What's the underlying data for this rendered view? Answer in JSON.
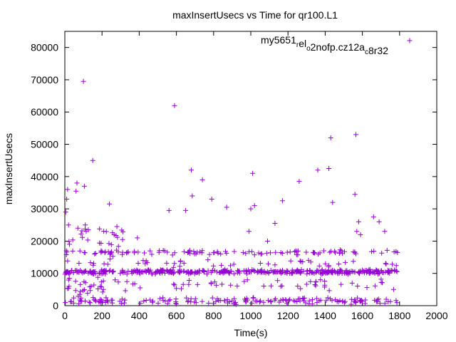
{
  "chart_data": {
    "type": "scatter",
    "title": "maxInsertUsecs vs Time for qr100.L1",
    "xlabel": "Time(s)",
    "ylabel": "maxInsertUsecs",
    "xlim": [
      0,
      2000
    ],
    "ylim": [
      0,
      85000
    ],
    "xticks": [
      0,
      200,
      400,
      600,
      800,
      1000,
      1200,
      1400,
      1600,
      1800,
      2000
    ],
    "yticks": [
      0,
      10000,
      20000,
      30000,
      40000,
      50000,
      60000,
      70000,
      80000
    ],
    "grid": false,
    "legend_position": "top-right",
    "marker": "plus",
    "series": [
      {
        "name": "my5651_rel_o2nofp.cz12a_c8r32",
        "legend_parts": [
          {
            "text": "my5651",
            "shift": "none"
          },
          {
            "text": "r",
            "shift": "sub"
          },
          {
            "text": "el",
            "shift": "none"
          },
          {
            "text": "o",
            "shift": "sub"
          },
          {
            "text": "2nofp.cz12a",
            "shift": "none"
          },
          {
            "text": "c",
            "shift": "sub"
          },
          {
            "text": "8r32",
            "shift": "none"
          }
        ],
        "color": "#9400d3",
        "outliers": [
          {
            "x": 5,
            "y": 29000
          },
          {
            "x": 10,
            "y": 33000
          },
          {
            "x": 15,
            "y": 36000
          },
          {
            "x": 20,
            "y": 25000
          },
          {
            "x": 8,
            "y": 17000
          },
          {
            "x": 25,
            "y": 19000
          },
          {
            "x": 60,
            "y": 35500
          },
          {
            "x": 65,
            "y": 38000
          },
          {
            "x": 70,
            "y": 24000
          },
          {
            "x": 100,
            "y": 69500
          },
          {
            "x": 105,
            "y": 37000
          },
          {
            "x": 110,
            "y": 25000
          },
          {
            "x": 115,
            "y": 23000
          },
          {
            "x": 150,
            "y": 45000
          },
          {
            "x": 160,
            "y": 16000
          },
          {
            "x": 240,
            "y": 31500
          },
          {
            "x": 265,
            "y": 22000
          },
          {
            "x": 280,
            "y": 24500
          },
          {
            "x": 390,
            "y": 21000
          },
          {
            "x": 560,
            "y": 29500
          },
          {
            "x": 590,
            "y": 62000
          },
          {
            "x": 650,
            "y": 29500
          },
          {
            "x": 680,
            "y": 42000
          },
          {
            "x": 685,
            "y": 34000
          },
          {
            "x": 740,
            "y": 39000
          },
          {
            "x": 790,
            "y": 33000
          },
          {
            "x": 870,
            "y": 30500
          },
          {
            "x": 990,
            "y": 23000
          },
          {
            "x": 1000,
            "y": 30000
          },
          {
            "x": 1010,
            "y": 41000
          },
          {
            "x": 1020,
            "y": 31000
          },
          {
            "x": 1090,
            "y": 20000
          },
          {
            "x": 1130,
            "y": 25500
          },
          {
            "x": 1170,
            "y": 32500
          },
          {
            "x": 1260,
            "y": 38500
          },
          {
            "x": 1360,
            "y": 42000
          },
          {
            "x": 1420,
            "y": 42500
          },
          {
            "x": 1430,
            "y": 52000
          },
          {
            "x": 1440,
            "y": 32000
          },
          {
            "x": 1560,
            "y": 34500
          },
          {
            "x": 1565,
            "y": 53000
          },
          {
            "x": 1570,
            "y": 23000
          },
          {
            "x": 1580,
            "y": 26000
          },
          {
            "x": 1590,
            "y": 22000
          },
          {
            "x": 1660,
            "y": 27500
          },
          {
            "x": 1690,
            "y": 26000
          },
          {
            "x": 1720,
            "y": 23000
          }
        ],
        "bands": [
          {
            "x_range": [
              0,
              1790
            ],
            "center": 10500,
            "spread": 800,
            "points": 420
          },
          {
            "x_range": [
              0,
              1790
            ],
            "center": 16500,
            "spread": 900,
            "points": 110
          },
          {
            "x_range": [
              0,
              1790
            ],
            "center": 1500,
            "spread": 1200,
            "points": 170
          },
          {
            "x_range": [
              0,
              1790
            ],
            "center": 6500,
            "spread": 2000,
            "points": 60
          },
          {
            "x_range": [
              0,
              1790
            ],
            "center": 13000,
            "spread": 1500,
            "points": 45
          },
          {
            "x_range": [
              0,
              320
            ],
            "center": 20000,
            "spread": 6000,
            "points": 25
          },
          {
            "x_range": [
              0,
              220
            ],
            "center": 6000,
            "spread": 5500,
            "points": 20
          }
        ]
      }
    ]
  }
}
